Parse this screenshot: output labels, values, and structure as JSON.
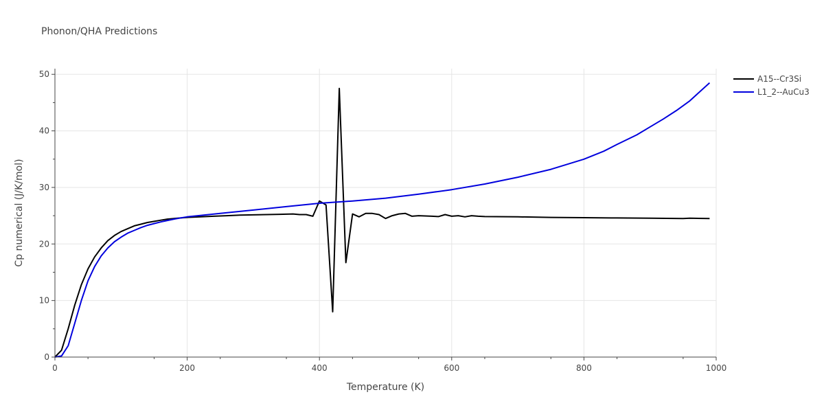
{
  "chart_data": {
    "type": "line",
    "title": "Phonon/QHA Predictions",
    "xlabel": "Temperature (K)",
    "ylabel": "Cp numerical (J/K/mol)",
    "xlim": [
      0,
      1000
    ],
    "ylim": [
      0,
      51
    ],
    "x_ticks": [
      0,
      200,
      400,
      600,
      800,
      1000
    ],
    "y_ticks": [
      0,
      10,
      20,
      30,
      40,
      50
    ],
    "grid": true,
    "legend_position": "top-right",
    "series": [
      {
        "name": "A15--Cr3Si",
        "color": "#000000",
        "x": [
          0,
          10,
          20,
          30,
          40,
          50,
          60,
          70,
          80,
          90,
          100,
          110,
          120,
          130,
          140,
          150,
          160,
          170,
          180,
          190,
          200,
          220,
          240,
          260,
          280,
          300,
          320,
          340,
          360,
          370,
          380,
          390,
          400,
          410,
          420,
          430,
          440,
          450,
          460,
          470,
          480,
          490,
          500,
          510,
          520,
          530,
          540,
          550,
          560,
          570,
          580,
          590,
          600,
          610,
          620,
          630,
          640,
          650,
          700,
          750,
          800,
          850,
          900,
          950,
          960,
          990
        ],
        "y": [
          0,
          1.2,
          5.0,
          9.2,
          12.8,
          15.6,
          17.7,
          19.3,
          20.6,
          21.5,
          22.2,
          22.7,
          23.2,
          23.5,
          23.8,
          24.0,
          24.2,
          24.4,
          24.5,
          24.6,
          24.7,
          24.8,
          24.9,
          25.0,
          25.1,
          25.15,
          25.2,
          25.25,
          25.3,
          25.2,
          25.2,
          24.9,
          27.6,
          26.9,
          8.0,
          47.5,
          16.7,
          25.3,
          24.8,
          25.4,
          25.4,
          25.2,
          24.5,
          25.0,
          25.3,
          25.4,
          24.9,
          25.0,
          24.95,
          24.9,
          24.85,
          25.2,
          24.9,
          25.0,
          24.8,
          25.0,
          24.9,
          24.85,
          24.8,
          24.7,
          24.65,
          24.6,
          24.55,
          24.5,
          24.55,
          24.5
        ]
      },
      {
        "name": "L1_2--AuCu3",
        "color": "#0000dd",
        "x": [
          0,
          10,
          20,
          30,
          40,
          50,
          60,
          70,
          80,
          90,
          100,
          110,
          120,
          130,
          140,
          150,
          160,
          170,
          180,
          190,
          200,
          250,
          300,
          350,
          400,
          450,
          500,
          550,
          600,
          650,
          700,
          750,
          800,
          830,
          850,
          880,
          900,
          920,
          940,
          960,
          975,
          990
        ],
        "y": [
          0,
          0.2,
          2.0,
          6.0,
          10.0,
          13.5,
          16.0,
          17.9,
          19.3,
          20.4,
          21.2,
          21.9,
          22.4,
          22.9,
          23.3,
          23.6,
          23.9,
          24.15,
          24.4,
          24.6,
          24.8,
          25.4,
          26.0,
          26.6,
          27.2,
          27.6,
          28.1,
          28.8,
          29.6,
          30.6,
          31.8,
          33.2,
          35.0,
          36.4,
          37.6,
          39.3,
          40.7,
          42.1,
          43.6,
          45.3,
          46.9,
          48.5
        ]
      }
    ]
  }
}
